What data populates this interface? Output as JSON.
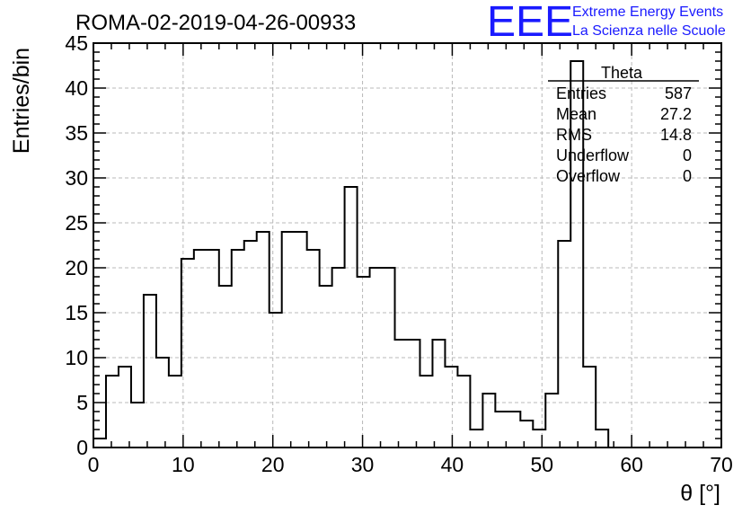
{
  "header": {
    "run_title": "ROMA-02-2019-04-26-00933",
    "logo_text": "EEE",
    "brand_line1": "Extreme Energy Events",
    "brand_line2": "La Scienza nelle Scuole",
    "brand_color": "#1a1aff"
  },
  "stats": {
    "name": "Theta",
    "rows": [
      {
        "label": "Entries",
        "value": "587"
      },
      {
        "label": "Mean",
        "value": "27.2"
      },
      {
        "label": "RMS",
        "value": "14.8"
      },
      {
        "label": "Underflow",
        "value": "0"
      },
      {
        "label": "Overflow",
        "value": "0"
      }
    ]
  },
  "chart_data": {
    "type": "bar",
    "histogram": true,
    "xlabel": "θ [°]",
    "ylabel": "Entries/bin",
    "xlim": [
      0,
      70
    ],
    "ylim": [
      0,
      45
    ],
    "grid": true,
    "bin_width": 1.4,
    "x_ticks": [
      0,
      10,
      20,
      30,
      40,
      50,
      60,
      70
    ],
    "y_ticks": [
      0,
      5,
      10,
      15,
      20,
      25,
      30,
      35,
      40,
      45
    ],
    "values": [
      1,
      8,
      9,
      5,
      17,
      10,
      8,
      21,
      22,
      22,
      18,
      22,
      23,
      24,
      15,
      24,
      24,
      22,
      18,
      20,
      29,
      19,
      20,
      20,
      12,
      12,
      8,
      12,
      9,
      8,
      2,
      6,
      4,
      4,
      3,
      2,
      6,
      23,
      43,
      9,
      2,
      0,
      0,
      0,
      0,
      0,
      0,
      0,
      0,
      0
    ]
  }
}
